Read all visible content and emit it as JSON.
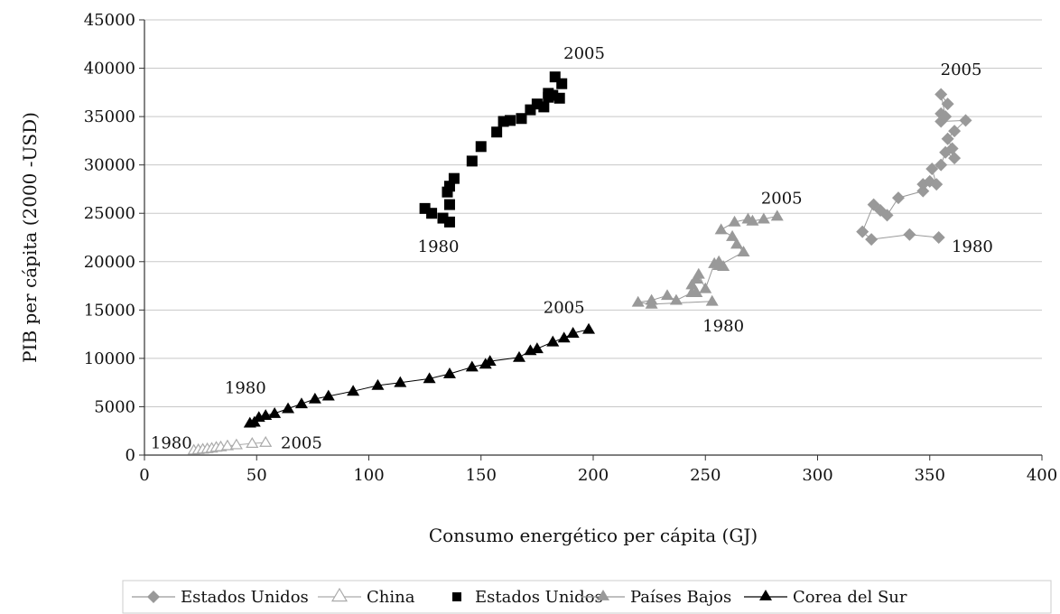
{
  "chart_data": {
    "type": "scatter",
    "title": "",
    "xlabel": "Consumo energético per cápita (GJ)",
    "ylabel": "PIB per cápita (2000 -USD)",
    "xlim": [
      0,
      400
    ],
    "ylim": [
      0,
      45000
    ],
    "x_ticks": [
      "0",
      "50",
      "100",
      "150",
      "200",
      "250",
      "300",
      "350",
      "400"
    ],
    "y_ticks": [
      "0",
      "5000",
      "10000",
      "15000",
      "20000",
      "25000",
      "30000",
      "35000",
      "40000",
      "45000"
    ],
    "grid": "horizontal",
    "legend_position": "bottom",
    "series": [
      {
        "name": "Estados Unidos",
        "marker": "diamond",
        "color": "#999999",
        "line": true,
        "points": [
          [
            354,
            22500
          ],
          [
            341,
            22800
          ],
          [
            324,
            22300
          ],
          [
            320,
            23100
          ],
          [
            325,
            25900
          ],
          [
            328,
            25300
          ],
          [
            331,
            24800
          ],
          [
            336,
            26600
          ],
          [
            347,
            27300
          ],
          [
            347,
            28000
          ],
          [
            350,
            28300
          ],
          [
            353,
            28000
          ],
          [
            351,
            29600
          ],
          [
            355,
            30000
          ],
          [
            357,
            31300
          ],
          [
            361,
            30700
          ],
          [
            360,
            31700
          ],
          [
            358,
            32700
          ],
          [
            361,
            33500
          ],
          [
            366,
            34600
          ],
          [
            355,
            34500
          ],
          [
            355,
            35300
          ],
          [
            357,
            35000
          ],
          [
            355,
            37300
          ],
          [
            358,
            36300
          ]
        ]
      },
      {
        "name": "China",
        "marker": "triangle-open",
        "color": "#aaaaaa",
        "line": true,
        "points": [
          [
            22,
            500
          ],
          [
            24,
            550
          ],
          [
            26,
            600
          ],
          [
            28,
            650
          ],
          [
            30,
            700
          ],
          [
            32,
            800
          ],
          [
            34,
            850
          ],
          [
            37,
            950
          ],
          [
            41,
            1050
          ],
          [
            48,
            1200
          ],
          [
            54,
            1300
          ]
        ]
      },
      {
        "name": "Estados Unidos",
        "marker": "square",
        "color": "#000000",
        "line": false,
        "points": [
          [
            136,
            24100
          ],
          [
            133,
            24500
          ],
          [
            125,
            25500
          ],
          [
            128,
            25000
          ],
          [
            136,
            25900
          ],
          [
            135,
            27200
          ],
          [
            136,
            27800
          ],
          [
            138,
            28600
          ],
          [
            146,
            30400
          ],
          [
            150,
            31900
          ],
          [
            157,
            33400
          ],
          [
            160,
            34500
          ],
          [
            163,
            34600
          ],
          [
            168,
            34800
          ],
          [
            172,
            35700
          ],
          [
            175,
            36300
          ],
          [
            178,
            36000
          ],
          [
            180,
            37000
          ],
          [
            182,
            37200
          ],
          [
            185,
            36900
          ],
          [
            183,
            39100
          ],
          [
            186,
            38400
          ],
          [
            180,
            37400
          ]
        ]
      },
      {
        "name": "Países Bajos",
        "marker": "triangle",
        "color": "#999999",
        "line": true,
        "points": [
          [
            253,
            15900
          ],
          [
            226,
            15600
          ],
          [
            220,
            15800
          ],
          [
            226,
            16000
          ],
          [
            233,
            16500
          ],
          [
            237,
            16000
          ],
          [
            244,
            16800
          ],
          [
            246,
            16800
          ],
          [
            244,
            17600
          ],
          [
            246,
            18200
          ],
          [
            247,
            18700
          ],
          [
            250,
            17200
          ],
          [
            254,
            19800
          ],
          [
            256,
            20000
          ],
          [
            258,
            19500
          ],
          [
            256,
            19600
          ],
          [
            267,
            21000
          ],
          [
            264,
            21800
          ],
          [
            262,
            22600
          ],
          [
            257,
            23300
          ],
          [
            263,
            24100
          ],
          [
            269,
            24400
          ],
          [
            271,
            24200
          ],
          [
            276,
            24400
          ],
          [
            282,
            24700
          ]
        ]
      },
      {
        "name": "Corea del Sur",
        "marker": "triangle",
        "color": "#000000",
        "line": true,
        "points": [
          [
            47,
            3300
          ],
          [
            49,
            3400
          ],
          [
            51,
            3900
          ],
          [
            54,
            4100
          ],
          [
            58,
            4300
          ],
          [
            64,
            4800
          ],
          [
            70,
            5300
          ],
          [
            76,
            5800
          ],
          [
            82,
            6100
          ],
          [
            93,
            6600
          ],
          [
            104,
            7200
          ],
          [
            114,
            7500
          ],
          [
            127,
            7900
          ],
          [
            136,
            8400
          ],
          [
            146,
            9100
          ],
          [
            152,
            9400
          ],
          [
            154,
            9700
          ],
          [
            167,
            10100
          ],
          [
            172,
            10800
          ],
          [
            175,
            11000
          ],
          [
            182,
            11700
          ],
          [
            187,
            12100
          ],
          [
            191,
            12600
          ],
          [
            198,
            13000
          ]
        ]
      }
    ],
    "annotations": [
      {
        "text": "2005",
        "x": 196,
        "y": 41000
      },
      {
        "text": "1980",
        "x": 131,
        "y": 21000
      },
      {
        "text": "2005",
        "x": 364,
        "y": 39300
      },
      {
        "text": "1980",
        "x": 369,
        "y": 21000
      },
      {
        "text": "2005",
        "x": 284,
        "y": 26000
      },
      {
        "text": "1980",
        "x": 258,
        "y": 12800
      },
      {
        "text": "2005",
        "x": 187,
        "y": 14700
      },
      {
        "text": "1980",
        "x": 45,
        "y": 6400
      },
      {
        "text": "1980",
        "x": 12,
        "y": 700
      },
      {
        "text": "2005",
        "x": 70,
        "y": 700
      }
    ]
  }
}
